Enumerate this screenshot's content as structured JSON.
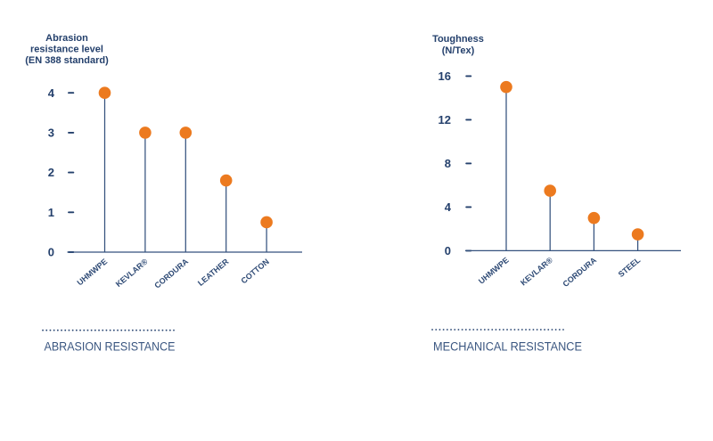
{
  "figure": {
    "background": "#ffffff"
  },
  "colors": {
    "navy_text": "#24406c",
    "axis_line": "#35527e",
    "marker_orange": "#ec7a1f",
    "caption_text": "#3a5680",
    "category_text": "#2e4a75"
  },
  "chart_data": [
    {
      "type": "lollipop",
      "title_lines": [
        "Abrasion",
        "resistance level",
        "(EN 388 standard)"
      ],
      "categories": [
        "UHMWPE",
        "KEVLAR®",
        "CORDURA",
        "LEATHER",
        "COTTON"
      ],
      "values": [
        4,
        3,
        3,
        1.8,
        0.75
      ],
      "yticks": [
        0,
        1,
        2,
        3,
        4
      ],
      "ylim": [
        0,
        4
      ],
      "xlabel": "",
      "ylabel": "Abrasion resistance level (EN 388 standard)",
      "grid": false,
      "legend": "none",
      "caption": "ABRASION RESISTANCE"
    },
    {
      "type": "lollipop",
      "title_lines": [
        "Toughness",
        "(N/Tex)"
      ],
      "categories": [
        "UHMWPE",
        "KEVLAR®",
        "CORDURA",
        "STEEL"
      ],
      "values": [
        15,
        5.5,
        3,
        1.5
      ],
      "yticks": [
        0,
        4,
        8,
        12,
        16
      ],
      "ylim": [
        0,
        16
      ],
      "xlabel": "",
      "ylabel": "Toughness (N/Tex)",
      "grid": false,
      "legend": "none",
      "caption": "MECHANICAL RESISTANCE"
    }
  ]
}
